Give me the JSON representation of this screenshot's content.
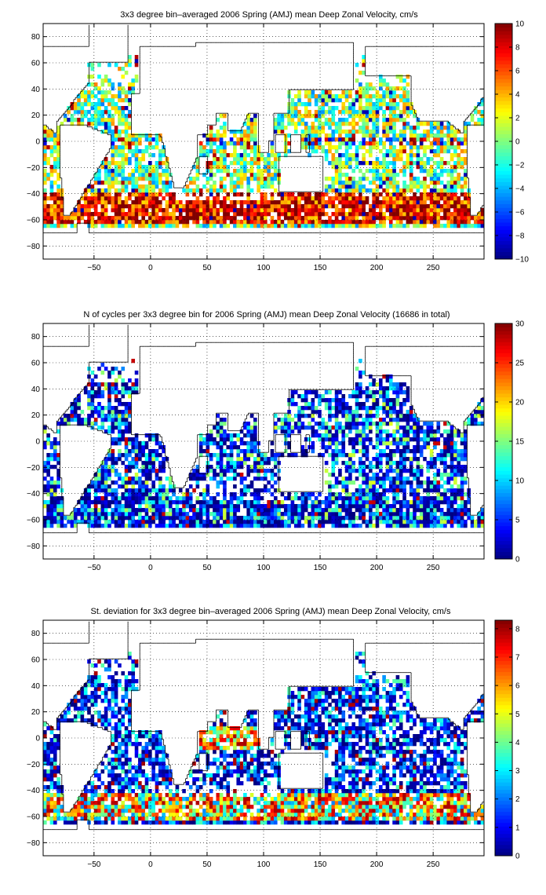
{
  "chart_data": [
    {
      "type": "heatmap",
      "title": "3x3 degree bin–averaged 2006 Spring (AMJ) mean Deep Zonal Velocity, cm/s",
      "xlabel": "",
      "ylabel": "",
      "xlim": [
        -95,
        295
      ],
      "ylim": [
        -90,
        90
      ],
      "xticks": [
        -50,
        0,
        50,
        100,
        150,
        200,
        250
      ],
      "yticks": [
        80,
        60,
        40,
        20,
        0,
        -20,
        -40,
        -60,
        -80
      ],
      "grid": true,
      "bin_size_deg": 3,
      "colorbar": {
        "colormap": "jet",
        "min": -10,
        "max": 10,
        "ticks": [
          10,
          8,
          6,
          4,
          2,
          0,
          -2,
          -4,
          -6,
          -8,
          -10
        ]
      },
      "value_range": [
        -10,
        10
      ]
    },
    {
      "type": "heatmap",
      "title": "N of cycles per 3x3 degree bin for 2006 Spring (AMJ) mean Deep Zonal Velocity (16686 in total)",
      "xlabel": "",
      "ylabel": "",
      "xlim": [
        -95,
        295
      ],
      "ylim": [
        -90,
        90
      ],
      "xticks": [
        -50,
        0,
        50,
        100,
        150,
        200,
        250
      ],
      "yticks": [
        80,
        60,
        40,
        20,
        0,
        -20,
        -40,
        -60,
        -80
      ],
      "grid": true,
      "bin_size_deg": 3,
      "colorbar": {
        "colormap": "jet",
        "min": 0,
        "max": 30,
        "ticks": [
          30,
          25,
          20,
          15,
          10,
          5,
          0
        ]
      },
      "value_range": [
        0,
        30
      ]
    },
    {
      "type": "heatmap",
      "title": "St. deviation for 3x3 degree bin–averaged 2006 Spring (AMJ) mean Deep Zonal Velocity, cm/s",
      "xlabel": "",
      "ylabel": "",
      "xlim": [
        -95,
        295
      ],
      "ylim": [
        -90,
        90
      ],
      "xticks": [
        -50,
        0,
        50,
        100,
        150,
        200,
        250
      ],
      "yticks": [
        80,
        60,
        40,
        20,
        0,
        -20,
        -40,
        -60,
        -80
      ],
      "grid": true,
      "bin_size_deg": 3,
      "colorbar": {
        "colormap": "jet",
        "min": 0,
        "max": 8.3,
        "ticks": [
          8,
          7,
          6,
          5,
          4,
          3,
          2,
          1,
          0
        ]
      },
      "value_range": [
        0,
        8.3
      ]
    }
  ]
}
